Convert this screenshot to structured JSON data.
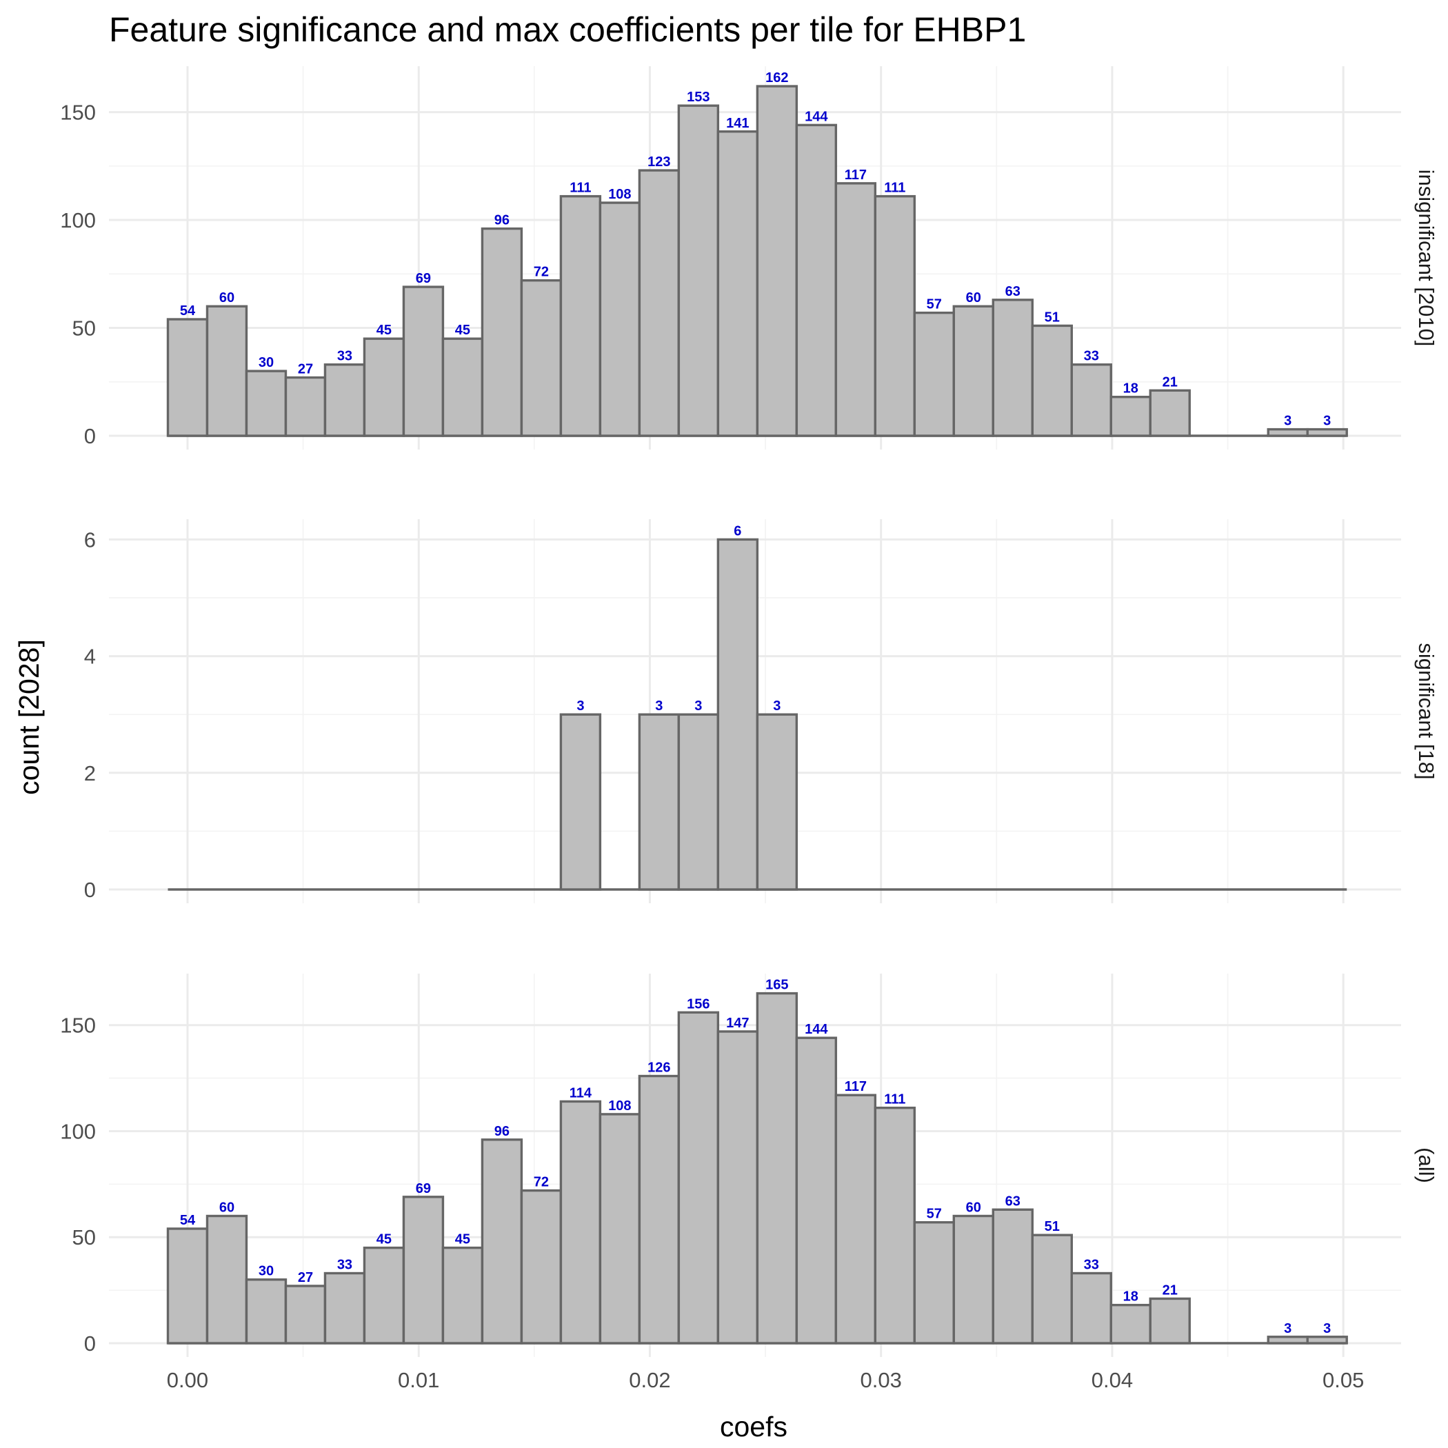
{
  "chart_data": {
    "type": "bar",
    "title": "Feature significance and max coefficients per tile for EHBP1",
    "xlabel": "coefs",
    "ylabel": "count [2028]",
    "x_ticks": [
      "0.00",
      "0.01",
      "0.02",
      "0.03",
      "0.04",
      "0.05"
    ],
    "x_tick_values": [
      0.0,
      0.01,
      0.02,
      0.03,
      0.04,
      0.05
    ],
    "xlim": [
      -0.0034,
      0.0525
    ],
    "bin_start": -0.00085,
    "bin_width": 0.0017,
    "grid": true,
    "colors": {
      "bar_fill": "#bebebe",
      "bar_outline": "#666666",
      "label": "#0000cc"
    },
    "facet_order": [
      "insignificant",
      "significant",
      "all"
    ],
    "panels": [
      {
        "id": "insignificant",
        "strip_label": "insignificant [2010]",
        "ylim": [
          0,
          170
        ],
        "y_ticks": [
          0,
          50,
          100,
          150
        ],
        "y_tick_labels": [
          "0",
          "50",
          "100",
          "150"
        ],
        "values": [
          54,
          60,
          30,
          27,
          33,
          45,
          69,
          45,
          96,
          72,
          111,
          108,
          123,
          153,
          141,
          162,
          144,
          117,
          111,
          57,
          60,
          63,
          51,
          33,
          18,
          21,
          0,
          0,
          3,
          3
        ],
        "labels": [
          "54",
          "60",
          "30",
          "27",
          "33",
          "45",
          "69",
          "45",
          "96",
          "72",
          "111",
          "108",
          "123",
          "153",
          "141",
          "162",
          "144",
          "117",
          "111",
          "57",
          "60",
          "63",
          "51",
          "33",
          "18",
          "21",
          "",
          "",
          "3",
          "3"
        ]
      },
      {
        "id": "significant",
        "strip_label": "significant [18]",
        "ylim": [
          0,
          6.3
        ],
        "y_ticks": [
          0,
          2,
          4,
          6
        ],
        "y_tick_labels": [
          "0",
          "2",
          "4",
          "6"
        ],
        "values": [
          0,
          0,
          0,
          0,
          0,
          0,
          0,
          0,
          0,
          0,
          3,
          0,
          3,
          3,
          6,
          3,
          0,
          0,
          0,
          0,
          0,
          0,
          0,
          0,
          0,
          0,
          0,
          0,
          0,
          0
        ],
        "labels": [
          "",
          "",
          "",
          "",
          "",
          "",
          "",
          "",
          "",
          "",
          "3",
          "",
          "3",
          "3",
          "6",
          "3",
          "",
          "",
          "",
          "",
          "",
          "",
          "",
          "",
          "",
          "",
          "",
          "",
          "",
          ""
        ]
      },
      {
        "id": "all",
        "strip_label": "(all)",
        "ylim": [
          0,
          173
        ],
        "y_ticks": [
          0,
          50,
          100,
          150
        ],
        "y_tick_labels": [
          "0",
          "50",
          "100",
          "150"
        ],
        "values": [
          54,
          60,
          30,
          27,
          33,
          45,
          69,
          45,
          96,
          72,
          114,
          108,
          126,
          156,
          147,
          165,
          144,
          117,
          111,
          57,
          60,
          63,
          51,
          33,
          18,
          21,
          0,
          0,
          3,
          3
        ],
        "labels": [
          "54",
          "60",
          "30",
          "27",
          "33",
          "45",
          "69",
          "45",
          "96",
          "72",
          "114",
          "108",
          "126",
          "156",
          "147",
          "165",
          "144",
          "117",
          "111",
          "57",
          "60",
          "63",
          "51",
          "33",
          "18",
          "21",
          "",
          "",
          "3",
          "3"
        ]
      }
    ]
  }
}
